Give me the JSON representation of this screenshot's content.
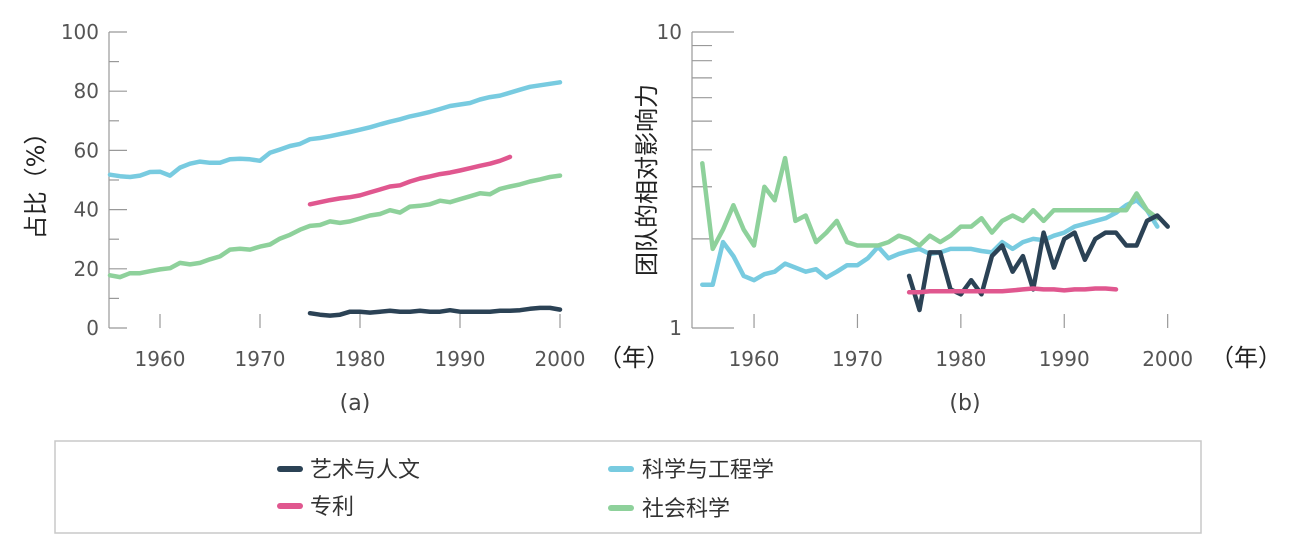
{
  "colors": {
    "arts": "#2b4255",
    "patents": "#e0578f",
    "science": "#78cbe0",
    "social": "#8ed19b"
  },
  "legend": [
    {
      "key": "arts",
      "label": "艺术与人文"
    },
    {
      "key": "patents",
      "label": "专利"
    },
    {
      "key": "science",
      "label": "科学与工程学"
    },
    {
      "key": "social",
      "label": "社会科学"
    }
  ],
  "chart_data": [
    {
      "type": "line",
      "panel_label": "(a)",
      "ylabel": "占比（%）",
      "xunit": "（年）",
      "xlim": [
        1955,
        2000
      ],
      "ylim": [
        0,
        100
      ],
      "xticks": [
        1960,
        1970,
        1980,
        1990,
        2000
      ],
      "yticks": [
        0,
        20,
        40,
        60,
        80,
        100
      ],
      "series": [
        {
          "key": "science",
          "x": [
            1955,
            1956,
            1957,
            1958,
            1959,
            1960,
            1961,
            1962,
            1963,
            1964,
            1965,
            1966,
            1967,
            1968,
            1969,
            1970,
            1971,
            1972,
            1973,
            1974,
            1975,
            1976,
            1977,
            1978,
            1979,
            1980,
            1981,
            1982,
            1983,
            1984,
            1985,
            1986,
            1987,
            1988,
            1989,
            1990,
            1991,
            1992,
            1993,
            1994,
            1995,
            1996,
            1997,
            1998,
            1999,
            2000
          ],
          "values": [
            51.8,
            51.3,
            51,
            51.5,
            52.7,
            52.8,
            51.5,
            54.2,
            55.5,
            56.2,
            55.8,
            55.8,
            57,
            57.2,
            57,
            56.5,
            59.2,
            60.3,
            61.5,
            62.2,
            63.8,
            64.2,
            64.8,
            65.5,
            66.2,
            67,
            67.8,
            68.8,
            69.7,
            70.5,
            71.5,
            72.2,
            73,
            74,
            75,
            75.5,
            76,
            77.2,
            78,
            78.5,
            79.5,
            80.5,
            81.5,
            82,
            82.5,
            83
          ]
        },
        {
          "key": "patents",
          "x": [
            1975,
            1976,
            1977,
            1978,
            1979,
            1980,
            1981,
            1982,
            1983,
            1984,
            1985,
            1986,
            1987,
            1988,
            1989,
            1990,
            1991,
            1992,
            1993,
            1994,
            1995
          ],
          "values": [
            41.8,
            42.5,
            43.2,
            43.8,
            44.2,
            44.8,
            45.8,
            46.8,
            47.8,
            48.2,
            49.5,
            50.5,
            51.2,
            52,
            52.5,
            53.2,
            54,
            54.8,
            55.5,
            56.5,
            57.8
          ]
        },
        {
          "key": "social",
          "x": [
            1955,
            1956,
            1957,
            1958,
            1959,
            1960,
            1961,
            1962,
            1963,
            1964,
            1965,
            1966,
            1967,
            1968,
            1969,
            1970,
            1971,
            1972,
            1973,
            1974,
            1975,
            1976,
            1977,
            1978,
            1979,
            1980,
            1981,
            1982,
            1983,
            1984,
            1985,
            1986,
            1987,
            1988,
            1989,
            1990,
            1991,
            1992,
            1993,
            1994,
            1995,
            1996,
            1997,
            1998,
            1999,
            2000
          ],
          "values": [
            17.8,
            17.2,
            18.5,
            18.5,
            19.2,
            19.8,
            20.2,
            22,
            21.5,
            22,
            23.2,
            24.2,
            26.5,
            26.8,
            26.5,
            27.5,
            28.2,
            30.2,
            31.5,
            33.2,
            34.5,
            34.8,
            36,
            35.5,
            36,
            37,
            38,
            38.5,
            39.8,
            39,
            41,
            41.3,
            41.8,
            43,
            42.5,
            43.5,
            44.5,
            45.5,
            45.2,
            47,
            47.8,
            48.5,
            49.5,
            50.2,
            51,
            51.5
          ]
        },
        {
          "key": "arts",
          "x": [
            1975,
            1976,
            1977,
            1978,
            1979,
            1980,
            1981,
            1982,
            1983,
            1984,
            1985,
            1986,
            1987,
            1988,
            1989,
            1990,
            1991,
            1992,
            1993,
            1994,
            1995,
            1996,
            1997,
            1998,
            1999,
            2000
          ],
          "values": [
            5,
            4.5,
            4.2,
            4.5,
            5.5,
            5.5,
            5.2,
            5.5,
            5.8,
            5.5,
            5.5,
            5.8,
            5.5,
            5.5,
            6,
            5.5,
            5.5,
            5.5,
            5.5,
            5.8,
            5.8,
            6,
            6.5,
            6.8,
            6.8,
            6.2
          ]
        }
      ]
    },
    {
      "type": "line",
      "panel_label": "(b)",
      "ylabel": "团队的相对影响力",
      "xunit": "（年）",
      "xlim": [
        1954,
        2001
      ],
      "ylim": [
        1,
        10
      ],
      "yscale": "log",
      "xticks": [
        1960,
        1970,
        1980,
        1990,
        2000
      ],
      "yticks": [
        1,
        10
      ],
      "series": [
        {
          "key": "science",
          "x": [
            1955,
            1956,
            1957,
            1958,
            1959,
            1960,
            1961,
            1962,
            1963,
            1964,
            1965,
            1966,
            1967,
            1968,
            1969,
            1970,
            1971,
            1972,
            1973,
            1974,
            1975,
            1976,
            1977,
            1978,
            1979,
            1980,
            1981,
            1982,
            1983,
            1984,
            1985,
            1986,
            1987,
            1988,
            1989,
            1990,
            1991,
            1992,
            1993,
            1994,
            1995,
            1996,
            1997,
            1998,
            1999
          ],
          "values": [
            1.4,
            1.4,
            1.95,
            1.75,
            1.5,
            1.45,
            1.52,
            1.55,
            1.65,
            1.6,
            1.55,
            1.58,
            1.48,
            1.55,
            1.63,
            1.63,
            1.72,
            1.88,
            1.72,
            1.78,
            1.82,
            1.85,
            1.78,
            1.8,
            1.85,
            1.85,
            1.85,
            1.82,
            1.8,
            1.95,
            1.85,
            1.95,
            2,
            1.98,
            2.05,
            2.1,
            2.2,
            2.25,
            2.3,
            2.35,
            2.45,
            2.6,
            2.7,
            2.5,
            2.2
          ]
        },
        {
          "key": "social",
          "x": [
            1955,
            1956,
            1957,
            1958,
            1959,
            1960,
            1961,
            1962,
            1963,
            1964,
            1965,
            1966,
            1967,
            1968,
            1969,
            1970,
            1971,
            1972,
            1973,
            1974,
            1975,
            1976,
            1977,
            1978,
            1979,
            1980,
            1981,
            1982,
            1983,
            1984,
            1985,
            1986,
            1987,
            1988,
            1989,
            1990,
            1991,
            1992,
            1993,
            1994,
            1995,
            1996,
            1997,
            1998,
            1999
          ],
          "values": [
            3.6,
            1.85,
            2.15,
            2.6,
            2.15,
            1.9,
            3.0,
            2.7,
            3.75,
            2.3,
            2.4,
            1.95,
            2.1,
            2.3,
            1.95,
            1.9,
            1.9,
            1.9,
            1.95,
            2.05,
            2.0,
            1.9,
            2.05,
            1.95,
            2.05,
            2.2,
            2.2,
            2.35,
            2.1,
            2.3,
            2.4,
            2.3,
            2.5,
            2.3,
            2.5,
            2.5,
            2.5,
            2.5,
            2.5,
            2.5,
            2.5,
            2.5,
            2.85,
            2.5,
            2.35
          ]
        },
        {
          "key": "arts",
          "x": [
            1975,
            1976,
            1977,
            1978,
            1979,
            1980,
            1981,
            1982,
            1983,
            1984,
            1985,
            1986,
            1987,
            1988,
            1989,
            1990,
            1991,
            1992,
            1993,
            1994,
            1995,
            1996,
            1997,
            1998,
            1999,
            2000
          ],
          "values": [
            1.5,
            1.15,
            1.8,
            1.8,
            1.35,
            1.3,
            1.45,
            1.3,
            1.75,
            1.9,
            1.55,
            1.75,
            1.35,
            2.1,
            1.6,
            2.0,
            2.1,
            1.7,
            2.0,
            2.1,
            2.1,
            1.9,
            1.9,
            2.3,
            2.4,
            2.2
          ]
        },
        {
          "key": "patents",
          "x": [
            1975,
            1976,
            1977,
            1978,
            1979,
            1980,
            1981,
            1982,
            1983,
            1984,
            1985,
            1986,
            1987,
            1988,
            1989,
            1990,
            1991,
            1992,
            1993,
            1994,
            1995
          ],
          "values": [
            1.32,
            1.32,
            1.33,
            1.33,
            1.33,
            1.33,
            1.33,
            1.33,
            1.33,
            1.33,
            1.34,
            1.35,
            1.36,
            1.35,
            1.35,
            1.34,
            1.35,
            1.35,
            1.36,
            1.36,
            1.35
          ]
        }
      ]
    }
  ]
}
